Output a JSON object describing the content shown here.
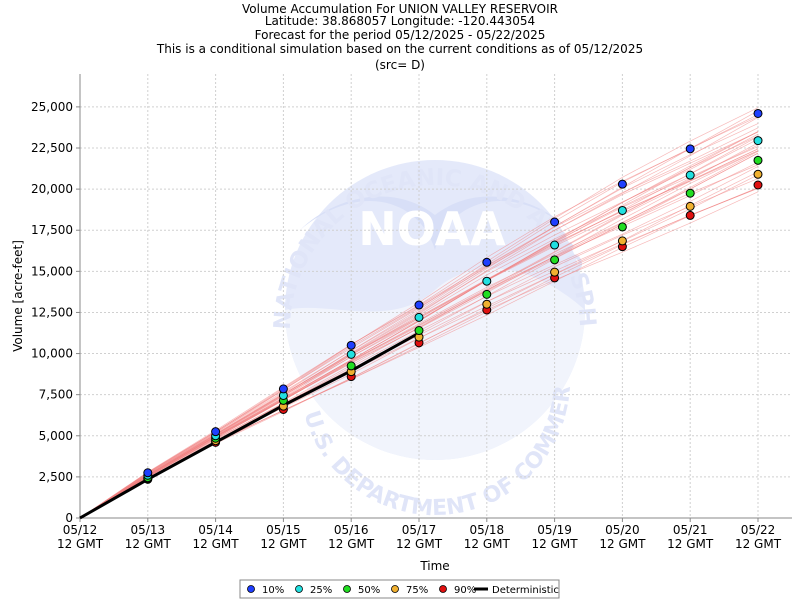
{
  "chart_data": {
    "type": "scatter",
    "title": [
      "Volume Accumulation For UNION VALLEY RESERVOIR",
      "Latitude: 38.868057 Longitude: -120.443054",
      "Forecast for the period 05/12/2025 - 05/22/2025",
      "This is a conditional simulation based on the current conditions as of 05/12/2025",
      "(src= D)"
    ],
    "xlabel": "Time",
    "ylabel": "Volume [acre-feet]",
    "x": [
      "05/12",
      "05/13",
      "05/14",
      "05/15",
      "05/16",
      "05/17",
      "05/18",
      "05/19",
      "05/20",
      "05/21",
      "05/22"
    ],
    "x_sublabel": "12 GMT",
    "ylim": [
      0,
      27000
    ],
    "yticks": [
      0,
      2500,
      5000,
      7500,
      10000,
      12500,
      15000,
      17500,
      20000,
      22500,
      25000
    ],
    "ytick_labels": [
      "0",
      "2,500",
      "5,000",
      "7,500",
      "10,000",
      "12,500",
      "15,000",
      "17,500",
      "20,000",
      "22,500",
      "25,000"
    ],
    "grid": true,
    "legend_position": "bottom",
    "series": [
      {
        "name": "10%",
        "color": "#1f3fff",
        "values": [
          null,
          2750,
          5250,
          7850,
          10500,
          12950,
          15550,
          18000,
          20300,
          22450,
          24600
        ]
      },
      {
        "name": "25%",
        "color": "#22e0e0",
        "values": [
          null,
          2600,
          5000,
          7450,
          9950,
          12200,
          14400,
          16600,
          18700,
          20850,
          22950
        ]
      },
      {
        "name": "50%",
        "color": "#22dd22",
        "values": [
          null,
          2450,
          4850,
          7150,
          9250,
          11400,
          13600,
          15700,
          17700,
          19750,
          21750
        ]
      },
      {
        "name": "75%",
        "color": "#f0b030",
        "values": [
          null,
          2400,
          4700,
          6800,
          8900,
          11000,
          13000,
          14950,
          16850,
          18950,
          20900
        ]
      },
      {
        "name": "90%",
        "color": "#e01010",
        "values": [
          null,
          2350,
          4600,
          6600,
          8600,
          10650,
          12650,
          14600,
          16500,
          18400,
          20250
        ]
      },
      {
        "name": "Deterministic",
        "color": "#000000",
        "values": [
          0,
          2350,
          4600,
          6850,
          8950,
          11250,
          null,
          null,
          null,
          null,
          null
        ]
      }
    ],
    "background_logo_text": {
      "top_arc": "NATIONAL OCEANIC AND ATMOSPHERIC ADMINISTRATION",
      "bottom_arc": "U.S. DEPARTMENT OF COMMERCE",
      "center": "NOAA"
    }
  }
}
